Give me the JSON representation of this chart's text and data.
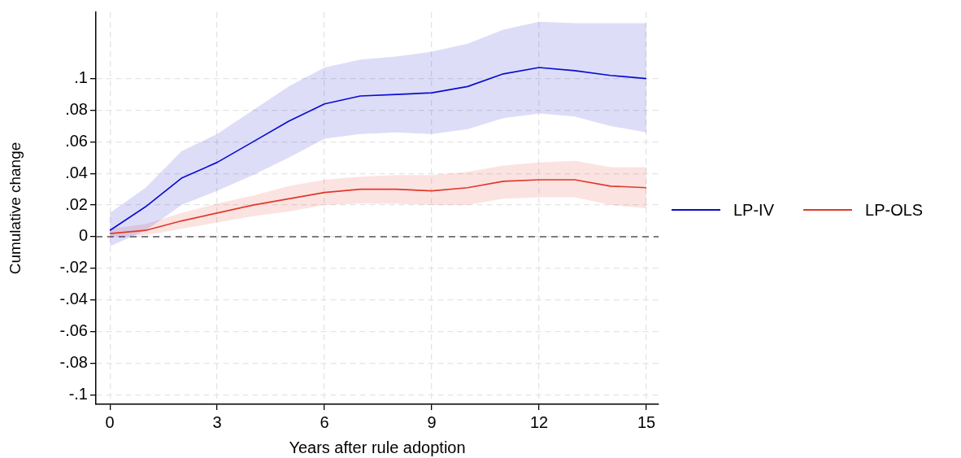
{
  "chart_data": {
    "type": "line",
    "xlabel": "Years after rule adoption",
    "ylabel": "Cumulative change",
    "x": [
      0,
      1,
      2,
      3,
      4,
      5,
      6,
      7,
      8,
      9,
      10,
      11,
      12,
      13,
      14,
      15
    ],
    "series": [
      {
        "name": "LP-IV",
        "color": "#0b0bd0",
        "values": [
          0.004,
          0.019,
          0.037,
          0.047,
          0.06,
          0.073,
          0.084,
          0.089,
          0.09,
          0.091,
          0.095,
          0.103,
          0.107,
          0.105,
          0.102,
          0.1
        ],
        "lower": [
          -0.006,
          0.004,
          0.02,
          0.029,
          0.039,
          0.05,
          0.062,
          0.065,
          0.066,
          0.065,
          0.068,
          0.075,
          0.078,
          0.076,
          0.07,
          0.066
        ],
        "upper": [
          0.015,
          0.031,
          0.054,
          0.065,
          0.08,
          0.095,
          0.107,
          0.112,
          0.114,
          0.117,
          0.122,
          0.131,
          0.136,
          0.135,
          0.135,
          0.135
        ]
      },
      {
        "name": "LP-OLS",
        "color": "#e0392b",
        "values": [
          0.002,
          0.004,
          0.01,
          0.015,
          0.02,
          0.024,
          0.028,
          0.03,
          0.03,
          0.029,
          0.031,
          0.035,
          0.036,
          0.036,
          0.032,
          0.031
        ],
        "lower": [
          0.0,
          0.001,
          0.005,
          0.009,
          0.013,
          0.016,
          0.02,
          0.021,
          0.021,
          0.02,
          0.02,
          0.024,
          0.025,
          0.025,
          0.02,
          0.018
        ],
        "upper": [
          0.005,
          0.008,
          0.015,
          0.021,
          0.026,
          0.032,
          0.036,
          0.038,
          0.039,
          0.039,
          0.041,
          0.045,
          0.047,
          0.048,
          0.044,
          0.044
        ]
      }
    ],
    "xlim": [
      -0.39,
      15.34
    ],
    "ylim": [
      -0.106,
      0.142
    ],
    "xticks": [
      0,
      3,
      6,
      9,
      12,
      15
    ],
    "yticks": [
      {
        "value": -0.1,
        "label": "-.1"
      },
      {
        "value": -0.08,
        "label": "-.08"
      },
      {
        "value": -0.06,
        "label": "-.06"
      },
      {
        "value": -0.04,
        "label": "-.04"
      },
      {
        "value": -0.02,
        "label": "-.02"
      },
      0,
      {
        "value": 0.02,
        "label": ".02"
      },
      {
        "value": 0.04,
        "label": ".04"
      },
      {
        "value": 0.06,
        "label": ".06"
      },
      {
        "value": 0.08,
        "label": ".08"
      },
      {
        "value": 0.1,
        "label": ".1"
      }
    ],
    "ref_lines": [
      {
        "axis": "y",
        "value": 0,
        "line_style": "dashed",
        "color": "#555555"
      }
    ],
    "grid": true,
    "legend": "right",
    "marker": "none",
    "line_style": "solid"
  }
}
